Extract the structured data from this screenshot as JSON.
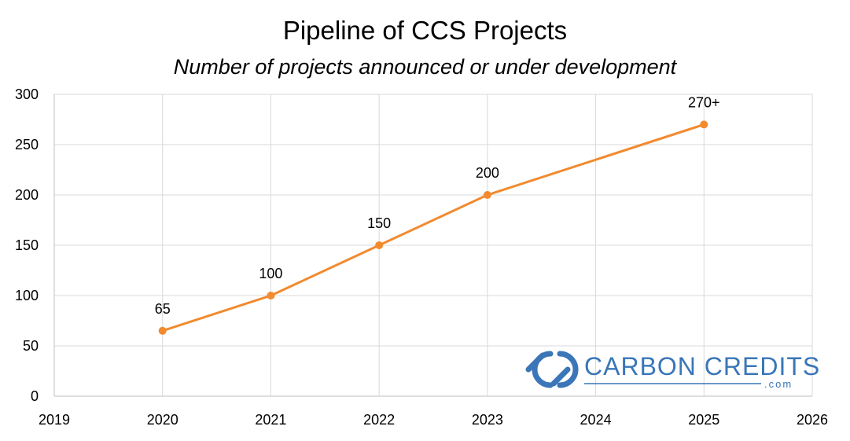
{
  "chart_data": {
    "type": "line",
    "title": "Pipeline of CCS Projects",
    "subtitle": "Number of projects announced or under development",
    "xlabel": "",
    "ylabel": "",
    "xlim": [
      2019,
      2026
    ],
    "ylim": [
      0,
      300
    ],
    "x_ticks": [
      "2019",
      "2020",
      "2021",
      "2022",
      "2023",
      "2024",
      "2025",
      "2026"
    ],
    "y_ticks": [
      "0",
      "50",
      "100",
      "150",
      "200",
      "250",
      "300"
    ],
    "grid": true,
    "series": [
      {
        "x": [
          2020,
          2021,
          2022,
          2023,
          2025
        ],
        "values": [
          65,
          100,
          150,
          200,
          270
        ],
        "data_labels": [
          "65",
          "100",
          "150",
          "200",
          "270+"
        ],
        "color": "#f28a2e"
      }
    ]
  },
  "logo": {
    "name": "CARBON CREDITS",
    "domain": ".com",
    "color": "#3a76b8"
  }
}
